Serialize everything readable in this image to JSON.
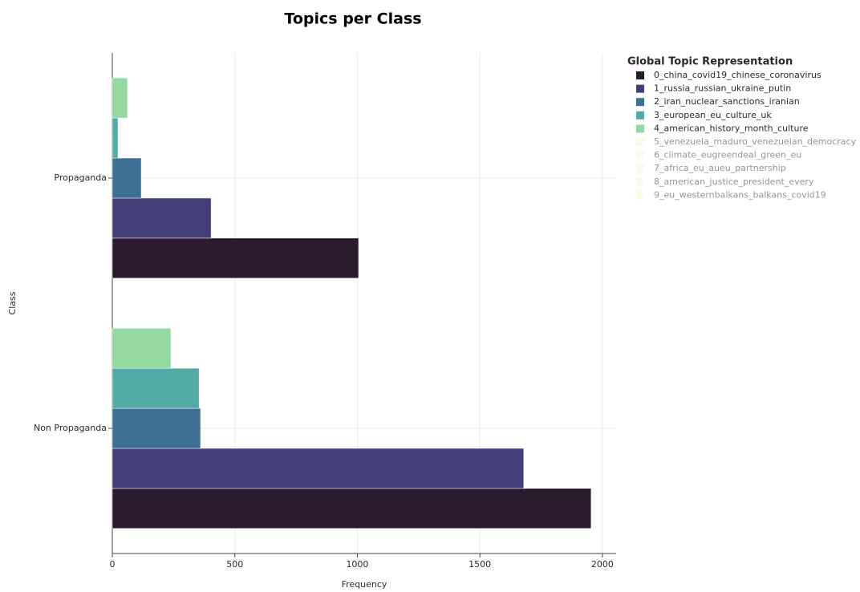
{
  "chart_data": {
    "type": "bar",
    "orientation": "horizontal",
    "title": "Topics per Class",
    "x_label": "Frequency",
    "y_label": "Class",
    "categories": [
      "Non Propaganda",
      "Propaganda"
    ],
    "legend_title": "Global Topic Representation",
    "xlim": [
      0,
      2056
    ],
    "xticks": [
      0,
      500,
      1000,
      1500,
      2000
    ],
    "grid": true,
    "series": [
      {
        "name": "0_china_covid19_chinese_coronavirus",
        "color": "#2b1a2e",
        "visible": true,
        "values": [
          1954,
          1005
        ]
      },
      {
        "name": "1_russia_russian_ukraine_putin",
        "color": "#413e7a",
        "visible": true,
        "values": [
          1679,
          403
        ]
      },
      {
        "name": "2_iran_nuclear_sanctions_iranian",
        "color": "#3e7095",
        "visible": true,
        "values": [
          360,
          118
        ]
      },
      {
        "name": "3_european_eu_culture_uk",
        "color": "#52aaa4",
        "visible": true,
        "values": [
          354,
          23
        ]
      },
      {
        "name": "4_american_history_month_culture",
        "color": "#93d9a1",
        "visible": true,
        "values": [
          239,
          62
        ]
      },
      {
        "name": "5_venezuela_maduro_venezuelan_democracy",
        "color": "#f6f7d4",
        "visible": false,
        "values": [
          null,
          null
        ]
      },
      {
        "name": "6_climate_eugreendeal_green_eu",
        "color": "#f6f7d4",
        "visible": false,
        "values": [
          null,
          null
        ]
      },
      {
        "name": "7_africa_eu_aueu_partnership",
        "color": "#f6f7d4",
        "visible": false,
        "values": [
          null,
          null
        ]
      },
      {
        "name": "8_american_justice_president_every",
        "color": "#f6f7d4",
        "visible": false,
        "values": [
          null,
          null
        ]
      },
      {
        "name": "9_eu_westernbalkans_balkans_covid19",
        "color": "#f6f7d4",
        "visible": false,
        "values": [
          null,
          null
        ]
      }
    ]
  }
}
